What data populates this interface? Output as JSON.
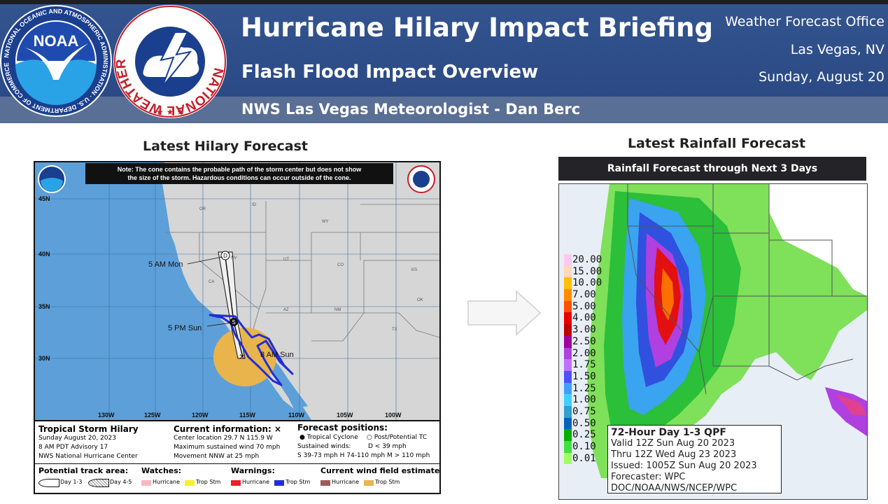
{
  "header": {
    "title": "Hurricane Hilary Impact Briefing",
    "subtitle": "Flash Flood Impact Overview",
    "meteorologist": "NWS Las Vegas Meteorologist - Dan Berc",
    "office_line1": "Weather Forecast Office",
    "office_line2": "Las Vegas, NV",
    "office_line3": "Sunday, August 20",
    "noaa_logo_text": "NOAA",
    "noaa_ring_text": "NATIONAL OCEANIC AND ATMOSPHERIC ADMINISTRATION · U.S. DEPARTMENT OF COMMERCE",
    "nws_ring_text": "NATIONAL WEATHER SERVICE"
  },
  "left": {
    "section_title": "Latest Hilary Forecast",
    "note": "Note: The cone contains the probable path of the storm center but does not show the size of the storm. Hazardous conditions can occur outside of the cone.",
    "note_line1": "Note: The cone contains the probable path of the storm center but does not show",
    "note_line2": "the size of the storm. Hazardous conditions can occur outside of the cone.",
    "lat_labels": [
      "45N",
      "40N",
      "35N",
      "30N"
    ],
    "lon_labels": [
      "130W",
      "125W",
      "120W",
      "115W",
      "110W",
      "105W",
      "100W"
    ],
    "state_labels": [
      "OR",
      "ID",
      "WY",
      "NV",
      "UT",
      "CO",
      "KS",
      "CA",
      "AZ",
      "NM",
      "OK",
      "TX"
    ],
    "positions": {
      "mon": "5 AM Mon",
      "sun_pm": "5 PM Sun",
      "sun_am": "8 AM Sun",
      "marker_d": "D",
      "marker_s": "S"
    },
    "storm": {
      "name": "Tropical Storm Hilary",
      "date": "Sunday August 20, 2023",
      "advisory": "8 AM PDT Advisory 17",
      "center": "NWS National Hurricane Center"
    },
    "current": {
      "title": "Current information:",
      "location": "Center location 29.7 N 115.9 W",
      "wind": "Maximum sustained wind 70 mph",
      "movement": "Movement NNW at 25 mph",
      "x_mark": "×"
    },
    "forecast": {
      "title": "Forecast positions:",
      "tc": "Tropical Cyclone",
      "ptc": "Post/Potential TC",
      "winds_label": "Sustained winds:",
      "d": "D < 39 mph",
      "s_row": "S 39-73 mph  H 74-110 mph  M > 110 mph"
    },
    "legend": {
      "track_title": "Potential track area:",
      "day13": "Day 1-3",
      "day45": "Day 4-5",
      "watches_title": "Watches:",
      "warnings_title": "Warnings:",
      "wind_title": "Current wind field estimate:",
      "hurricane": "Hurricane",
      "trop_stm": "Trop Stm"
    },
    "colors": {
      "ocean": "#5d9fd8",
      "land": "#d6d6d6",
      "cone_fill": "#f0f0f0",
      "wind_field": "#e9b44c",
      "trop_warning": "#1f2fd6",
      "hurricane_watch": "#f7b9c4",
      "trop_watch": "#f4f22b",
      "hurricane_warning": "#e8232b",
      "hurricane_wind": "#a0595c",
      "trop_wind": "#e9b44c"
    }
  },
  "right": {
    "section_title": "Latest Rainfall Forecast",
    "bar_title": "Rainfall Forecast through Next 3 Days",
    "scale": [
      {
        "value": "20.00",
        "color": "#ffc8f0"
      },
      {
        "value": "15.00",
        "color": "#ffd9b0"
      },
      {
        "value": "10.00",
        "color": "#ffc000"
      },
      {
        "value": "7.00",
        "color": "#ff8c00"
      },
      {
        "value": "5.00",
        "color": "#ff5000"
      },
      {
        "value": "4.00",
        "color": "#e80000"
      },
      {
        "value": "3.00",
        "color": "#c00000"
      },
      {
        "value": "2.50",
        "color": "#a000a0"
      },
      {
        "value": "2.00",
        "color": "#b040e0"
      },
      {
        "value": "1.75",
        "color": "#c070ff"
      },
      {
        "value": "1.50",
        "color": "#5050ff"
      },
      {
        "value": "1.25",
        "color": "#40a0ff"
      },
      {
        "value": "1.00",
        "color": "#40d0ff"
      },
      {
        "value": "0.75",
        "color": "#30a0d0"
      },
      {
        "value": "0.50",
        "color": "#0060c0"
      },
      {
        "value": "0.25",
        "color": "#00b000"
      },
      {
        "value": "0.10",
        "color": "#40e040"
      },
      {
        "value": "0.01",
        "color": "#a0ff60"
      }
    ],
    "qpf": {
      "title": "72-Hour Day 1-3 QPF",
      "valid": "Valid 12Z Sun Aug 20 2023",
      "thru": "Thru 12Z Wed Aug 23 2023",
      "issued": "Issued: 1005Z Sun Aug 20 2023",
      "forecaster": "Forecaster: WPC",
      "org": "DOC/NOAA/NWS/NCEP/WPC"
    }
  }
}
